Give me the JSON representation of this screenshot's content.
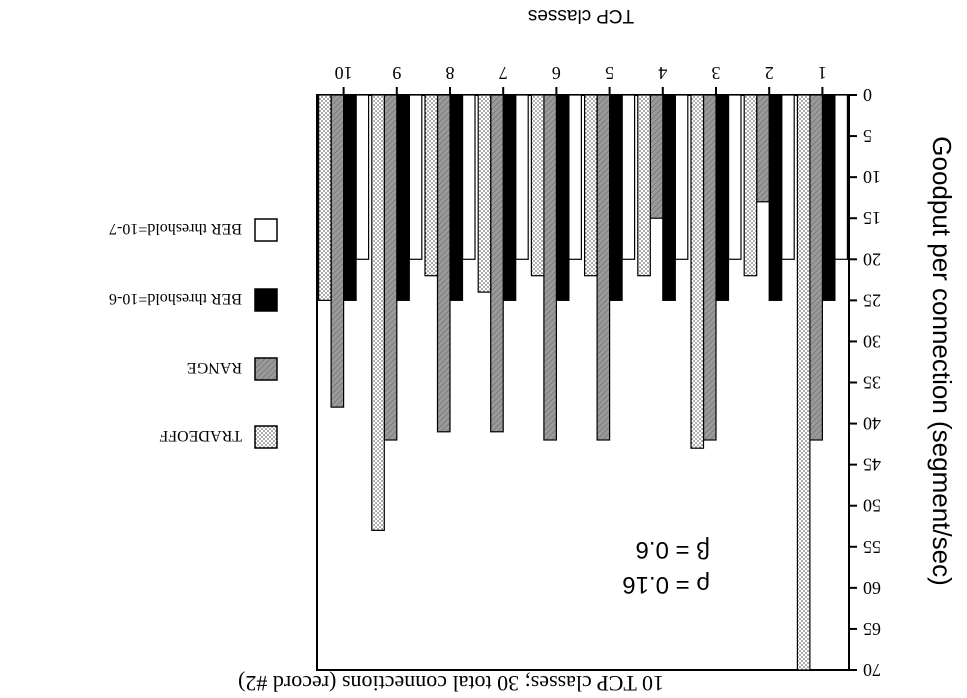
{
  "chart_data": {
    "type": "bar",
    "orientation": "vertical",
    "rotated_180": true,
    "title": "10 TCP classes; 30 total connections (record #2)",
    "xlabel": "TCP classes",
    "ylabel": "Goodput per connection (segment/sec)",
    "categories": [
      "1",
      "2",
      "3",
      "4",
      "5",
      "6",
      "7",
      "8",
      "9",
      "10"
    ],
    "ylim": [
      0,
      70
    ],
    "yticks": [
      0,
      5,
      10,
      15,
      20,
      25,
      30,
      35,
      40,
      45,
      50,
      55,
      60,
      65,
      70
    ],
    "grid": false,
    "legend_position": "left",
    "series": [
      {
        "name": "BER threshold=10-7",
        "values": [
          20,
          20,
          20,
          20,
          20,
          20,
          20,
          20,
          20,
          20
        ],
        "color": "#ffffff",
        "pattern": "none"
      },
      {
        "name": "BER threshold=10-6",
        "values": [
          25,
          25,
          25,
          25,
          25,
          25,
          25,
          25,
          25,
          25
        ],
        "color": "#000000",
        "pattern": "solid"
      },
      {
        "name": "RANGE",
        "values": [
          42,
          13,
          42,
          15,
          42,
          42,
          41,
          41,
          42,
          38
        ],
        "color": "#9a9a9a",
        "pattern": "hatch"
      },
      {
        "name": "TRADEOFF",
        "values": [
          70,
          22,
          43,
          22,
          22,
          22,
          24,
          22,
          53,
          25
        ],
        "color": "#f0f0f0",
        "pattern": "dots"
      }
    ],
    "annotations": [
      "ρ = 0.16",
      "β = 0.6"
    ]
  },
  "legend": {
    "items": [
      {
        "label": "BER threshold=10-7",
        "key": "ber7"
      },
      {
        "label": "BER threshold=10-6",
        "key": "ber6"
      },
      {
        "label": "RANGE",
        "key": "range"
      },
      {
        "label": "TRADEOFF",
        "key": "tradeoff"
      }
    ]
  }
}
